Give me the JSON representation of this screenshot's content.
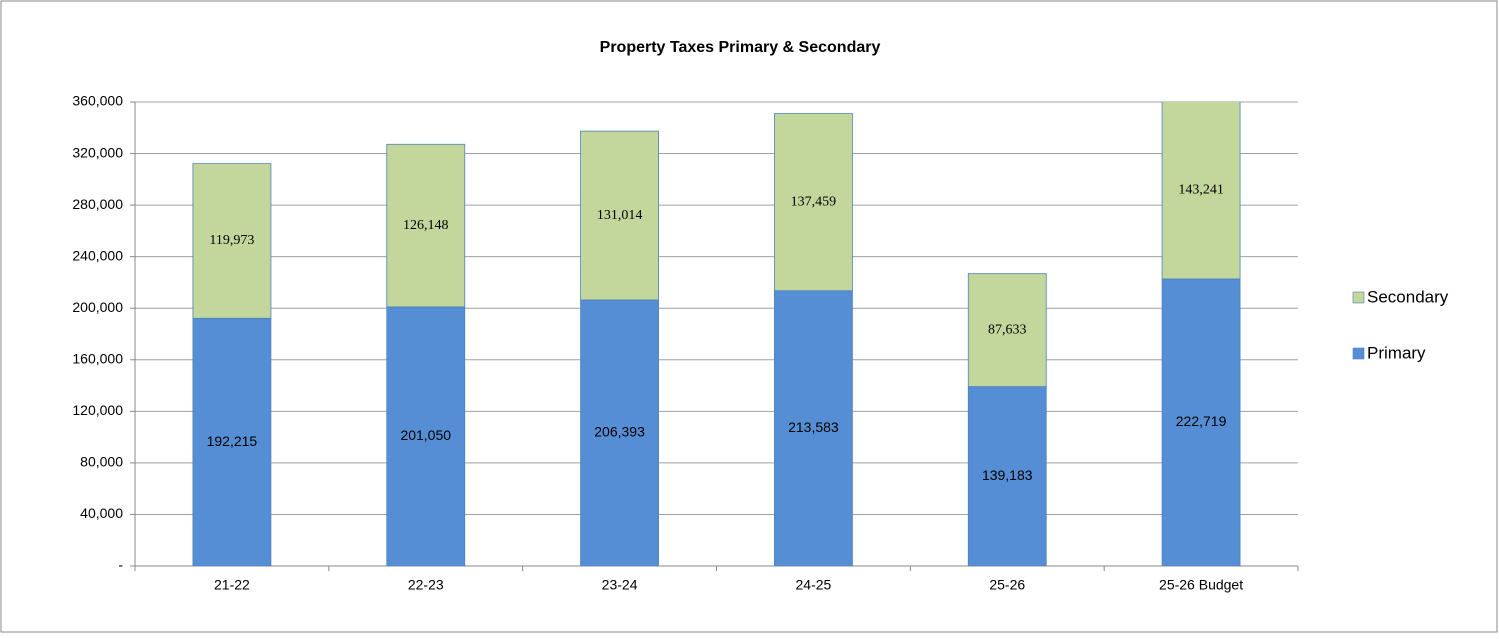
{
  "chart_data": {
    "type": "stacked_bar",
    "title": "Property Taxes Primary & Secondary",
    "categories": [
      "21-22",
      "22-23",
      "23-24",
      "24-25",
      "25-26",
      "25-26 Budget"
    ],
    "series": [
      {
        "name": "Primary",
        "color": "#558ed5",
        "values": [
          192215,
          201050,
          206393,
          213583,
          139183,
          222719
        ],
        "value_labels": [
          "192,215",
          "201,050",
          "206,393",
          "213,583",
          "139,183",
          "222,719"
        ]
      },
      {
        "name": "Secondary",
        "color": "#c3d69b",
        "values": [
          119973,
          126148,
          131014,
          137459,
          87633,
          143241
        ],
        "value_labels": [
          "119,973",
          "126,148",
          "131,014",
          "137,459",
          "87,633",
          "143,241"
        ]
      }
    ],
    "ylim": [
      0,
      360000
    ],
    "yticks": [
      {
        "value": 0,
        "label": "-"
      },
      {
        "value": 40000,
        "label": "40,000"
      },
      {
        "value": 80000,
        "label": "80,000"
      },
      {
        "value": 120000,
        "label": "120,000"
      },
      {
        "value": 160000,
        "label": "160,000"
      },
      {
        "value": 200000,
        "label": "200,000"
      },
      {
        "value": 240000,
        "label": "240,000"
      },
      {
        "value": 280000,
        "label": "280,000"
      },
      {
        "value": 320000,
        "label": "320,000"
      },
      {
        "value": 360000,
        "label": "360,000"
      }
    ],
    "grid": true,
    "legend": "right"
  }
}
